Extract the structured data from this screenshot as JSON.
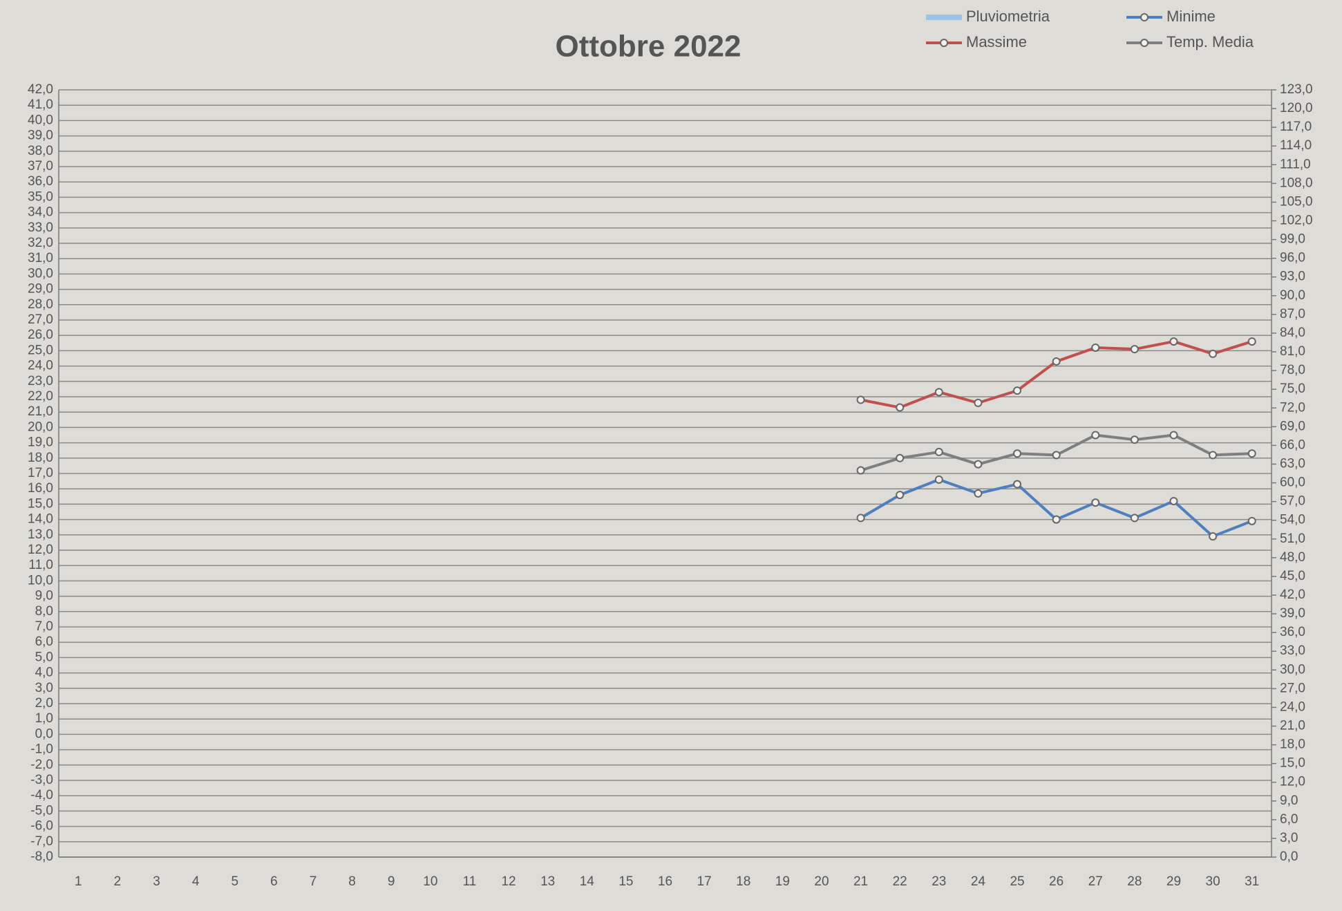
{
  "chart_data": {
    "type": "line",
    "title": "Ottobre 2022",
    "categories": [
      "1",
      "2",
      "3",
      "4",
      "5",
      "6",
      "7",
      "8",
      "9",
      "10",
      "11",
      "12",
      "13",
      "14",
      "15",
      "16",
      "17",
      "18",
      "19",
      "20",
      "21",
      "22",
      "23",
      "24",
      "25",
      "26",
      "27",
      "28",
      "29",
      "30",
      "31"
    ],
    "series": [
      {
        "name": "Pluviometria",
        "color": "#9dc3e6",
        "axis": "y2",
        "values": [
          null,
          null,
          null,
          null,
          null,
          null,
          null,
          null,
          null,
          null,
          null,
          null,
          null,
          null,
          null,
          null,
          null,
          null,
          null,
          null,
          null,
          null,
          null,
          null,
          null,
          null,
          null,
          null,
          null,
          null,
          null
        ]
      },
      {
        "name": "Minime",
        "color": "#4f7fc0",
        "values": [
          null,
          null,
          null,
          null,
          null,
          null,
          null,
          null,
          null,
          null,
          null,
          null,
          null,
          null,
          null,
          null,
          null,
          null,
          null,
          null,
          14.1,
          15.6,
          16.6,
          15.7,
          16.3,
          14.0,
          15.1,
          14.1,
          15.2,
          12.9,
          13.9
        ]
      },
      {
        "name": "Massime",
        "color": "#c0504d",
        "values": [
          null,
          null,
          null,
          null,
          null,
          null,
          null,
          null,
          null,
          null,
          null,
          null,
          null,
          null,
          null,
          null,
          null,
          null,
          null,
          null,
          21.8,
          21.3,
          22.3,
          21.6,
          22.4,
          24.3,
          25.2,
          25.1,
          25.6,
          24.8,
          25.6
        ]
      },
      {
        "name": "Temp. Media",
        "color": "#7f7f7f",
        "values": [
          null,
          null,
          null,
          null,
          null,
          null,
          null,
          null,
          null,
          null,
          null,
          null,
          null,
          null,
          null,
          null,
          null,
          null,
          null,
          null,
          17.2,
          18.0,
          18.4,
          17.6,
          18.3,
          18.2,
          19.5,
          19.2,
          19.5,
          18.2,
          18.3
        ]
      }
    ],
    "ylim": [
      -8,
      42
    ],
    "yticks": [
      {
        "value": 42,
        "label": "42,0"
      },
      {
        "value": 41,
        "label": "41,0"
      },
      {
        "value": 40,
        "label": "40,0"
      },
      {
        "value": 39,
        "label": "39,0"
      },
      {
        "value": 38,
        "label": "38,0"
      },
      {
        "value": 37,
        "label": "37,0"
      },
      {
        "value": 36,
        "label": "36,0"
      },
      {
        "value": 35,
        "label": "35,0"
      },
      {
        "value": 34,
        "label": "34,0"
      },
      {
        "value": 33,
        "label": "33,0"
      },
      {
        "value": 32,
        "label": "32,0"
      },
      {
        "value": 31,
        "label": "31,0"
      },
      {
        "value": 30,
        "label": "30,0"
      },
      {
        "value": 29,
        "label": "29,0"
      },
      {
        "value": 28,
        "label": "28,0"
      },
      {
        "value": 27,
        "label": "27,0"
      },
      {
        "value": 26,
        "label": "26,0"
      },
      {
        "value": 25,
        "label": "25,0"
      },
      {
        "value": 24,
        "label": "24,0"
      },
      {
        "value": 23,
        "label": "23,0"
      },
      {
        "value": 22,
        "label": "22,0"
      },
      {
        "value": 21,
        "label": "21,0"
      },
      {
        "value": 20,
        "label": "20,0"
      },
      {
        "value": 19,
        "label": "19,0"
      },
      {
        "value": 18,
        "label": "18,0"
      },
      {
        "value": 17,
        "label": "17,0"
      },
      {
        "value": 16,
        "label": "16,0"
      },
      {
        "value": 15,
        "label": "15,0"
      },
      {
        "value": 14,
        "label": "14,0"
      },
      {
        "value": 13,
        "label": "13,0"
      },
      {
        "value": 12,
        "label": "12,0"
      },
      {
        "value": 11,
        "label": "11,0"
      },
      {
        "value": 10,
        "label": "10,0"
      },
      {
        "value": 9,
        "label": "9,0"
      },
      {
        "value": 8,
        "label": "8,0"
      },
      {
        "value": 7,
        "label": "7,0"
      },
      {
        "value": 6,
        "label": "6,0"
      },
      {
        "value": 5,
        "label": "5,0"
      },
      {
        "value": 4,
        "label": "4,0"
      },
      {
        "value": 3,
        "label": "3,0"
      },
      {
        "value": 2,
        "label": "2,0"
      },
      {
        "value": 1,
        "label": "1,0"
      },
      {
        "value": 0,
        "label": "0,0"
      },
      {
        "value": -1,
        "label": "-1,0"
      },
      {
        "value": -2,
        "label": "-2,0"
      },
      {
        "value": -3,
        "label": "-3,0"
      },
      {
        "value": -4,
        "label": "-4,0"
      },
      {
        "value": -5,
        "label": "-5,0"
      },
      {
        "value": -6,
        "label": "-6,0"
      },
      {
        "value": -7,
        "label": "-7,0"
      },
      {
        "value": -8,
        "label": "-8,0"
      }
    ],
    "y2lim": [
      0,
      123
    ],
    "y2ticks": [
      {
        "value": 123,
        "label": "123,0"
      },
      {
        "value": 120,
        "label": "120,0"
      },
      {
        "value": 117,
        "label": "117,0"
      },
      {
        "value": 114,
        "label": "114,0"
      },
      {
        "value": 111,
        "label": "111,0"
      },
      {
        "value": 108,
        "label": "108,0"
      },
      {
        "value": 105,
        "label": "105,0"
      },
      {
        "value": 102,
        "label": "102,0"
      },
      {
        "value": 99,
        "label": "99,0"
      },
      {
        "value": 96,
        "label": "96,0"
      },
      {
        "value": 93,
        "label": "93,0"
      },
      {
        "value": 90,
        "label": "90,0"
      },
      {
        "value": 87,
        "label": "87,0"
      },
      {
        "value": 84,
        "label": "84,0"
      },
      {
        "value": 81,
        "label": "81,0"
      },
      {
        "value": 78,
        "label": "78,0"
      },
      {
        "value": 75,
        "label": "75,0"
      },
      {
        "value": 72,
        "label": "72,0"
      },
      {
        "value": 69,
        "label": "69,0"
      },
      {
        "value": 66,
        "label": "66,0"
      },
      {
        "value": 63,
        "label": "63,0"
      },
      {
        "value": 60,
        "label": "60,0"
      },
      {
        "value": 57,
        "label": "57,0"
      },
      {
        "value": 54,
        "label": "54,0"
      },
      {
        "value": 51,
        "label": "51,0"
      },
      {
        "value": 48,
        "label": "48,0"
      },
      {
        "value": 45,
        "label": "45,0"
      },
      {
        "value": 42,
        "label": "42,0"
      },
      {
        "value": 39,
        "label": "39,0"
      },
      {
        "value": 36,
        "label": "36,0"
      },
      {
        "value": 33,
        "label": "33,0"
      },
      {
        "value": 30,
        "label": "30,0"
      },
      {
        "value": 27,
        "label": "27,0"
      },
      {
        "value": 24,
        "label": "24,0"
      },
      {
        "value": 21,
        "label": "21,0"
      },
      {
        "value": 18,
        "label": "18,0"
      },
      {
        "value": 15,
        "label": "15,0"
      },
      {
        "value": 12,
        "label": "12,0"
      },
      {
        "value": 9,
        "label": "9,0"
      },
      {
        "value": 6,
        "label": "6,0"
      },
      {
        "value": 3,
        "label": "3,0"
      },
      {
        "value": 0,
        "label": "0,0"
      }
    ],
    "grid": true,
    "legend": "top-right"
  }
}
